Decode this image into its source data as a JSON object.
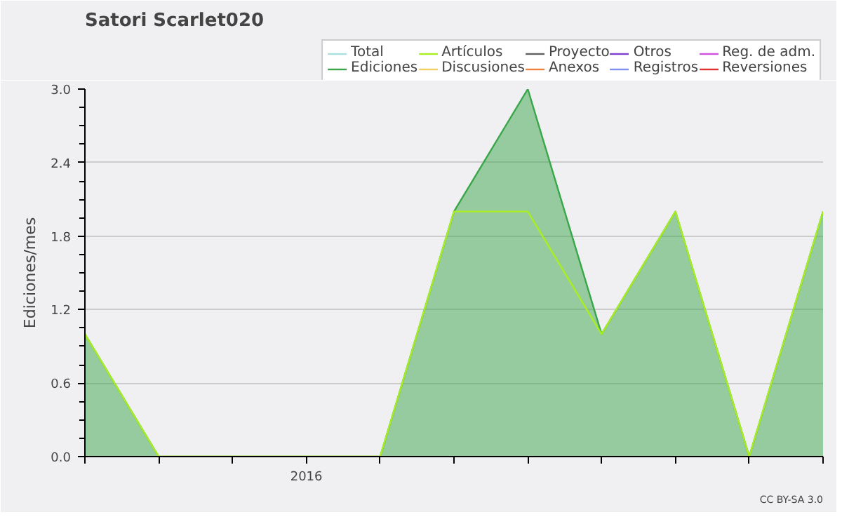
{
  "chart_data": {
    "type": "line",
    "title": "Satori Scarlet020",
    "ylabel": "Ediciones/mes",
    "categories": [
      null,
      null,
      null,
      "2016",
      null,
      null,
      null,
      null,
      null,
      null,
      null
    ],
    "ylim": [
      0,
      3.0
    ],
    "yticks": [
      {
        "value": 0,
        "label": "0.0"
      },
      {
        "value": 0.6,
        "label": "0.6"
      },
      {
        "value": 1.2,
        "label": "1.2"
      },
      {
        "value": 1.8,
        "label": "1.8"
      },
      {
        "value": 2.4,
        "label": "2.4"
      },
      {
        "value": 3.0,
        "label": "3.0"
      }
    ],
    "series": [
      {
        "name": "Total",
        "color": "#a8e0e0",
        "values": [
          null,
          null,
          null,
          null,
          null,
          null,
          null,
          null,
          null,
          null,
          null
        ]
      },
      {
        "name": "Ediciones",
        "type": "area",
        "color": "#3aa64a",
        "values": [
          1,
          0,
          0,
          0,
          0,
          2,
          3,
          1,
          2,
          0,
          2
        ]
      },
      {
        "name": "Artículos",
        "color": "#aaee22",
        "values": [
          1,
          0,
          0,
          0,
          0,
          2,
          2,
          1,
          2,
          0,
          2
        ]
      },
      {
        "name": "Discusiones",
        "color": "#f0d060",
        "values": [
          null,
          null,
          null,
          null,
          null,
          null,
          null,
          null,
          null,
          null,
          null
        ]
      },
      {
        "name": "Proyecto",
        "color": "#606060",
        "values": [
          null,
          null,
          null,
          null,
          null,
          null,
          null,
          null,
          null,
          null,
          null
        ]
      },
      {
        "name": "Anexos",
        "color": "#f08040",
        "values": [
          null,
          null,
          null,
          null,
          null,
          null,
          null,
          null,
          null,
          null,
          null
        ]
      },
      {
        "name": "Otros",
        "color": "#8040d0",
        "values": [
          null,
          null,
          null,
          null,
          null,
          null,
          null,
          null,
          null,
          null,
          null
        ]
      },
      {
        "name": "Registros",
        "color": "#8090f0",
        "values": [
          null,
          null,
          null,
          null,
          null,
          null,
          null,
          null,
          null,
          null,
          null
        ]
      },
      {
        "name": "Reg. de adm.",
        "color": "#d050e0",
        "values": [
          null,
          null,
          null,
          null,
          null,
          null,
          null,
          null,
          null,
          null,
          null
        ]
      },
      {
        "name": "Reversiones",
        "color": "#e03030",
        "values": [
          null,
          null,
          null,
          null,
          null,
          null,
          null,
          null,
          null,
          null,
          null
        ]
      }
    ],
    "grid": "y",
    "legend": "top right",
    "annotations": [
      "CC BY-SA 3.0"
    ]
  }
}
